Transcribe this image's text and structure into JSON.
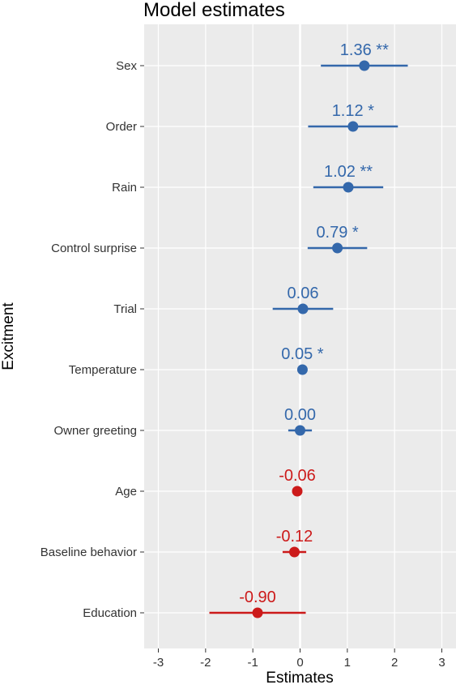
{
  "chart_data": {
    "type": "forest",
    "title": "Model estimates",
    "xlabel": "Estimates",
    "ylabel": "Excitment",
    "xlim": [
      -3.3,
      3.3
    ],
    "x_ticks": [
      "-3",
      "-2",
      "-1",
      "0",
      "1",
      "2",
      "3"
    ],
    "grid": true,
    "colors": {
      "positive": "#3468ab",
      "negative": "#cc1a1a",
      "panel": "#ebebeb",
      "grid": "#ffffff",
      "zero_line": "#ffffff"
    },
    "terms": [
      {
        "name": "Sex",
        "estimate": 1.36,
        "ci": [
          0.44,
          2.28
        ],
        "label": "1.36 **",
        "sign": "positive"
      },
      {
        "name": "Order",
        "estimate": 1.12,
        "ci": [
          0.17,
          2.07
        ],
        "label": "1.12 *",
        "sign": "positive"
      },
      {
        "name": "Rain",
        "estimate": 1.02,
        "ci": [
          0.28,
          1.76
        ],
        "label": "1.02 **",
        "sign": "positive"
      },
      {
        "name": "Control surprise",
        "estimate": 0.79,
        "ci": [
          0.16,
          1.42
        ],
        "label": "0.79 *",
        "sign": "positive"
      },
      {
        "name": "Trial",
        "estimate": 0.06,
        "ci": [
          -0.58,
          0.7
        ],
        "label": "0.06",
        "sign": "positive"
      },
      {
        "name": "Temperature",
        "estimate": 0.05,
        "ci": [
          0.01,
          0.09
        ],
        "label": "0.05 *",
        "sign": "positive"
      },
      {
        "name": "Owner greeting",
        "estimate": 0.0,
        "ci": [
          -0.25,
          0.25
        ],
        "label": "0.00",
        "sign": "positive"
      },
      {
        "name": "Age",
        "estimate": -0.06,
        "ci": [
          -0.16,
          0.04
        ],
        "label": "-0.06",
        "sign": "negative"
      },
      {
        "name": "Baseline behavior",
        "estimate": -0.12,
        "ci": [
          -0.37,
          0.13
        ],
        "label": "-0.12",
        "sign": "negative"
      },
      {
        "name": "Education",
        "estimate": -0.9,
        "ci": [
          -1.92,
          0.12
        ],
        "label": "-0.90",
        "sign": "negative"
      }
    ]
  }
}
